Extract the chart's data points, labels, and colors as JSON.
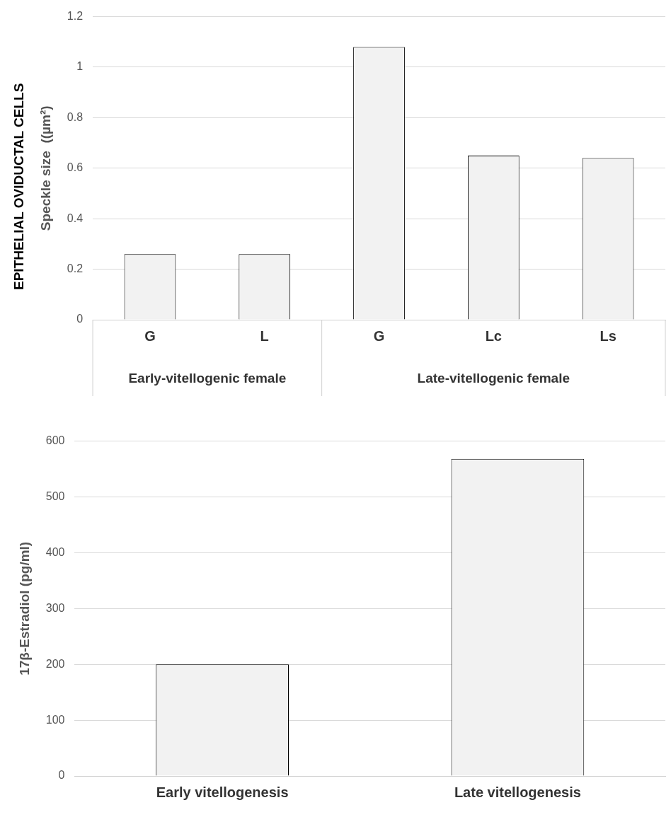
{
  "chart_data": [
    {
      "type": "bar",
      "title": "EPITHELIAL OVIDUCTAL CELLS",
      "ylabel": "Speckle size  ((µm²)",
      "categories": [
        "G",
        "L",
        "G",
        "Lc",
        "Ls"
      ],
      "values": [
        0.26,
        0.26,
        1.08,
        0.65,
        0.64
      ],
      "color": "#f2f2f2",
      "ylim": [
        0,
        1.2
      ],
      "yticks": [
        0,
        0.2,
        0.4,
        0.6,
        0.8,
        1,
        1.2
      ],
      "grid": "y",
      "annotations": [
        "Early-vitellogenic female",
        "Late-vitellogenic female"
      ]
    },
    {
      "type": "bar",
      "ylabel": "17β-Estradiol (pg/ml)",
      "categories": [
        "Early vitellogenesis",
        "Late vitellogenesis"
      ],
      "values": [
        200,
        568
      ],
      "color": "#f2f2f2",
      "ylim": [
        0,
        600
      ],
      "yticks": [
        0,
        100,
        200,
        300,
        400,
        500,
        600
      ],
      "grid": "y"
    }
  ]
}
